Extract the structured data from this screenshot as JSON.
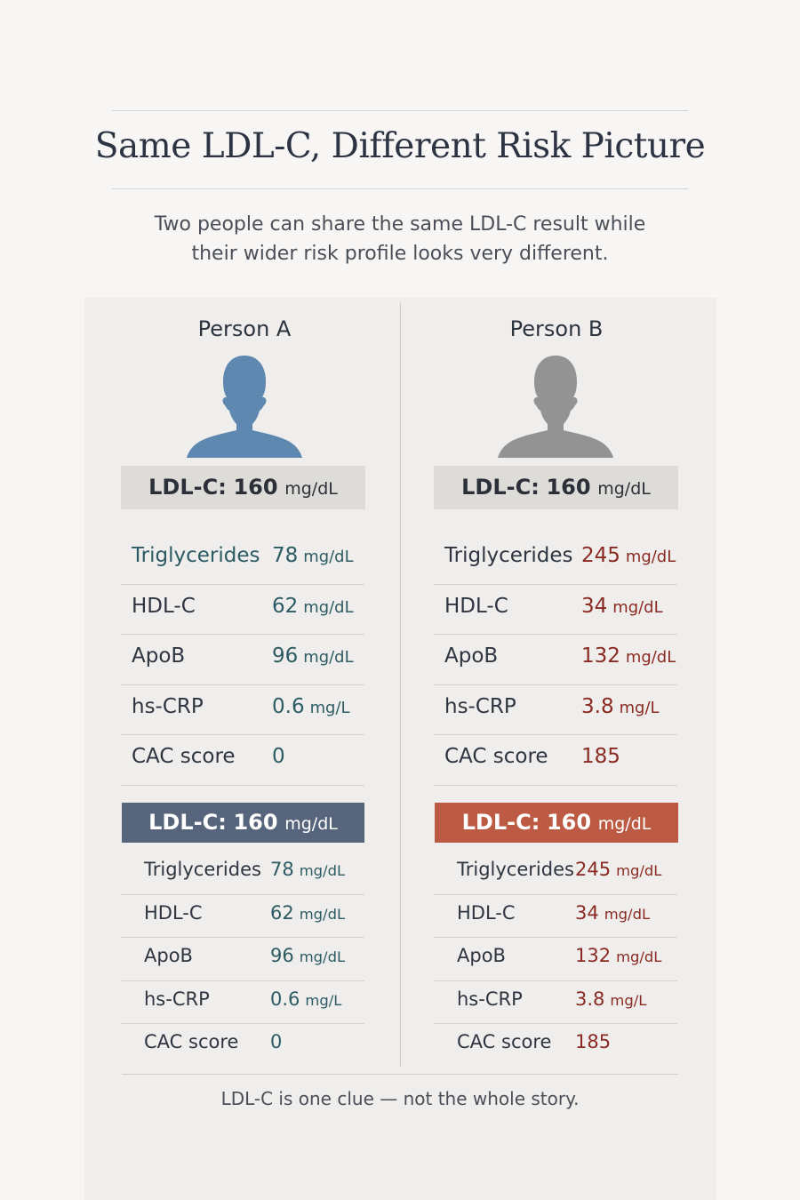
{
  "title": "Same LDL-C, Different Risk Picture",
  "subtitle_line1": "Two people can share the same LDL-C result while",
  "subtitle_line2": "their wider risk profile looks very different.",
  "colors": {
    "person_a_silhouette": "#5e88af",
    "person_b_silhouette": "#939393",
    "slate_box": "#56657c",
    "rust_box": "#bc5a43",
    "teal_value": "#2d5b63",
    "red_value": "#8a2a22"
  },
  "person_a": {
    "name": "Person A",
    "icon": "person-silhouette-icon",
    "ldl": {
      "label": "LDL-C:",
      "value": "160",
      "unit": "mg/dL"
    },
    "markers": [
      {
        "label": "Triglycerides",
        "value": "78",
        "unit": "mg/dL"
      },
      {
        "label": "HDL-C",
        "value": "62",
        "unit": "mg/dL"
      },
      {
        "label": "ApoB",
        "value": "96",
        "unit": "mg/dL"
      },
      {
        "label": "hs-CRP",
        "value": "0.6",
        "unit": "mg/L"
      },
      {
        "label": "CAC score",
        "value": "0",
        "unit": ""
      }
    ]
  },
  "person_b": {
    "name": "Person B",
    "icon": "person-silhouette-icon",
    "ldl": {
      "label": "LDL-C:",
      "value": "160",
      "unit": "mg/dL"
    },
    "markers": [
      {
        "label": "Triglycerides",
        "value": "245",
        "unit": "mg/dL"
      },
      {
        "label": "HDL-C",
        "value": "34",
        "unit": "mg/dL"
      },
      {
        "label": "ApoB",
        "value": "132",
        "unit": "mg/dL"
      },
      {
        "label": "hs-CRP",
        "value": "3.8",
        "unit": "mg/L"
      },
      {
        "label": "CAC score",
        "value": "185",
        "unit": ""
      }
    ]
  },
  "footer": "LDL-C is one clue — not the whole story."
}
